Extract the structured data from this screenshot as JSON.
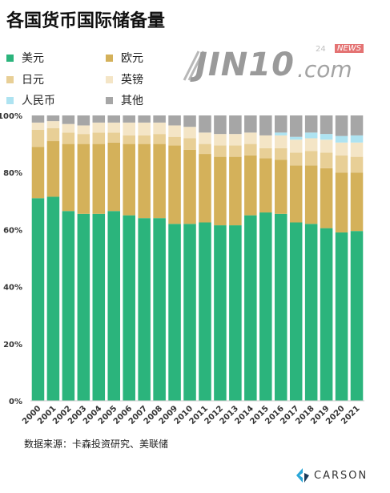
{
  "title": "各国货币国际储备量",
  "legend": [
    {
      "label": "美元",
      "color": "#2bb47c"
    },
    {
      "label": "欧元",
      "color": "#d4b15a"
    },
    {
      "label": "日元",
      "color": "#e8cf96"
    },
    {
      "label": "英镑",
      "color": "#f4e5c6"
    },
    {
      "label": "人民币",
      "color": "#aee3f1"
    },
    {
      "label": "其他",
      "color": "#a6a6a6"
    }
  ],
  "logo": {
    "mark": "JIN10",
    "domain": ".com",
    "badge": "24",
    "news": "NEWS"
  },
  "source": "数据来源：卡森投资研究、美联储",
  "brand": "CARSON",
  "chart_data": {
    "type": "bar",
    "stacked": true,
    "categories": [
      "2000",
      "2001",
      "2002",
      "2003",
      "2004",
      "2005",
      "2006",
      "2007",
      "2008",
      "2009",
      "2010",
      "2011",
      "2012",
      "2013",
      "2014",
      "2015",
      "2016",
      "2017",
      "2018",
      "2019",
      "2020",
      "2021"
    ],
    "series": [
      {
        "name": "美元",
        "values": [
          71,
          71.5,
          66.5,
          65.5,
          65.5,
          66.5,
          65,
          64,
          64,
          62,
          62,
          62.5,
          61.5,
          61.5,
          65,
          66,
          65.5,
          62.5,
          62,
          60.5,
          59,
          59.5
        ]
      },
      {
        "name": "欧元",
        "values": [
          18,
          19.5,
          23.5,
          24.5,
          24.5,
          24,
          25,
          26,
          26,
          27.5,
          26,
          24,
          24,
          24,
          21,
          19,
          19,
          20,
          20.5,
          21,
          21,
          20.5
        ]
      },
      {
        "name": "日元",
        "values": [
          6,
          4.5,
          4,
          3.5,
          4,
          3.5,
          3,
          3,
          3.5,
          3,
          4,
          3.5,
          4,
          4,
          4,
          3.5,
          4,
          4.5,
          5,
          5.5,
          6,
          5.5
        ]
      },
      {
        "name": "英镑",
        "values": [
          2.5,
          2.5,
          3,
          3,
          3.5,
          3.5,
          4.5,
          4.5,
          4,
          4,
          4,
          4,
          4,
          4,
          4,
          4.5,
          4.5,
          4.5,
          4.5,
          4.5,
          4.5,
          5
        ]
      },
      {
        "name": "人民币",
        "values": [
          0,
          0,
          0,
          0,
          0,
          0,
          0,
          0,
          0,
          0,
          0,
          0,
          0,
          0,
          0,
          0,
          1,
          1,
          2,
          2,
          2.3,
          2.5
        ]
      },
      {
        "name": "其他",
        "values": [
          2.5,
          2,
          3,
          3.5,
          2.5,
          2.5,
          2.5,
          2.5,
          2.5,
          3.5,
          4,
          6,
          6.5,
          6.5,
          6,
          7,
          6,
          7.5,
          6,
          6.5,
          7.2,
          7
        ]
      }
    ],
    "yticks": [
      "0%",
      "20%",
      "40%",
      "60%",
      "80%",
      "100%"
    ],
    "ylim": [
      0,
      100
    ]
  }
}
